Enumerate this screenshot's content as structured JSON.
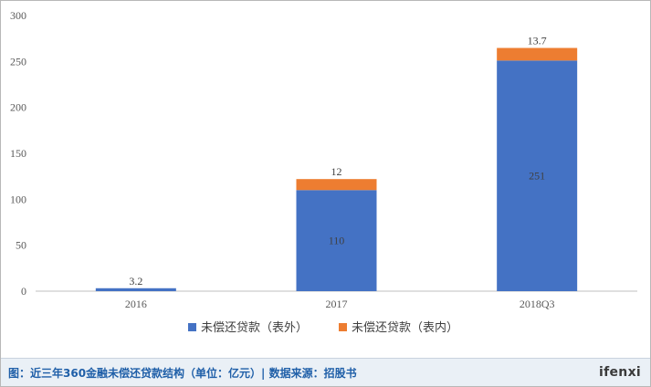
{
  "chart_data": {
    "type": "bar",
    "stacked": true,
    "categories": [
      "2016",
      "2017",
      "2018Q3"
    ],
    "series": [
      {
        "name": "未偿还贷款（表外）",
        "color": "#4472c4",
        "values": [
          3.2,
          110,
          251
        ],
        "labels": [
          "3.2",
          "110",
          "251"
        ]
      },
      {
        "name": "未偿还贷款（表内）",
        "color": "#ed7d31",
        "values": [
          0,
          12,
          13.7
        ],
        "labels": [
          "",
          "12",
          "13.7"
        ]
      }
    ],
    "ylim": [
      0,
      300
    ],
    "yticks": [
      "0",
      "50",
      "100",
      "150",
      "200",
      "250",
      "300"
    ],
    "grid": false,
    "legend": "bottom"
  },
  "footer": {
    "caption": "图：近三年360金融未偿还贷款结构（单位：亿元）| 数据来源：招股书",
    "brand": "ifenxi"
  }
}
